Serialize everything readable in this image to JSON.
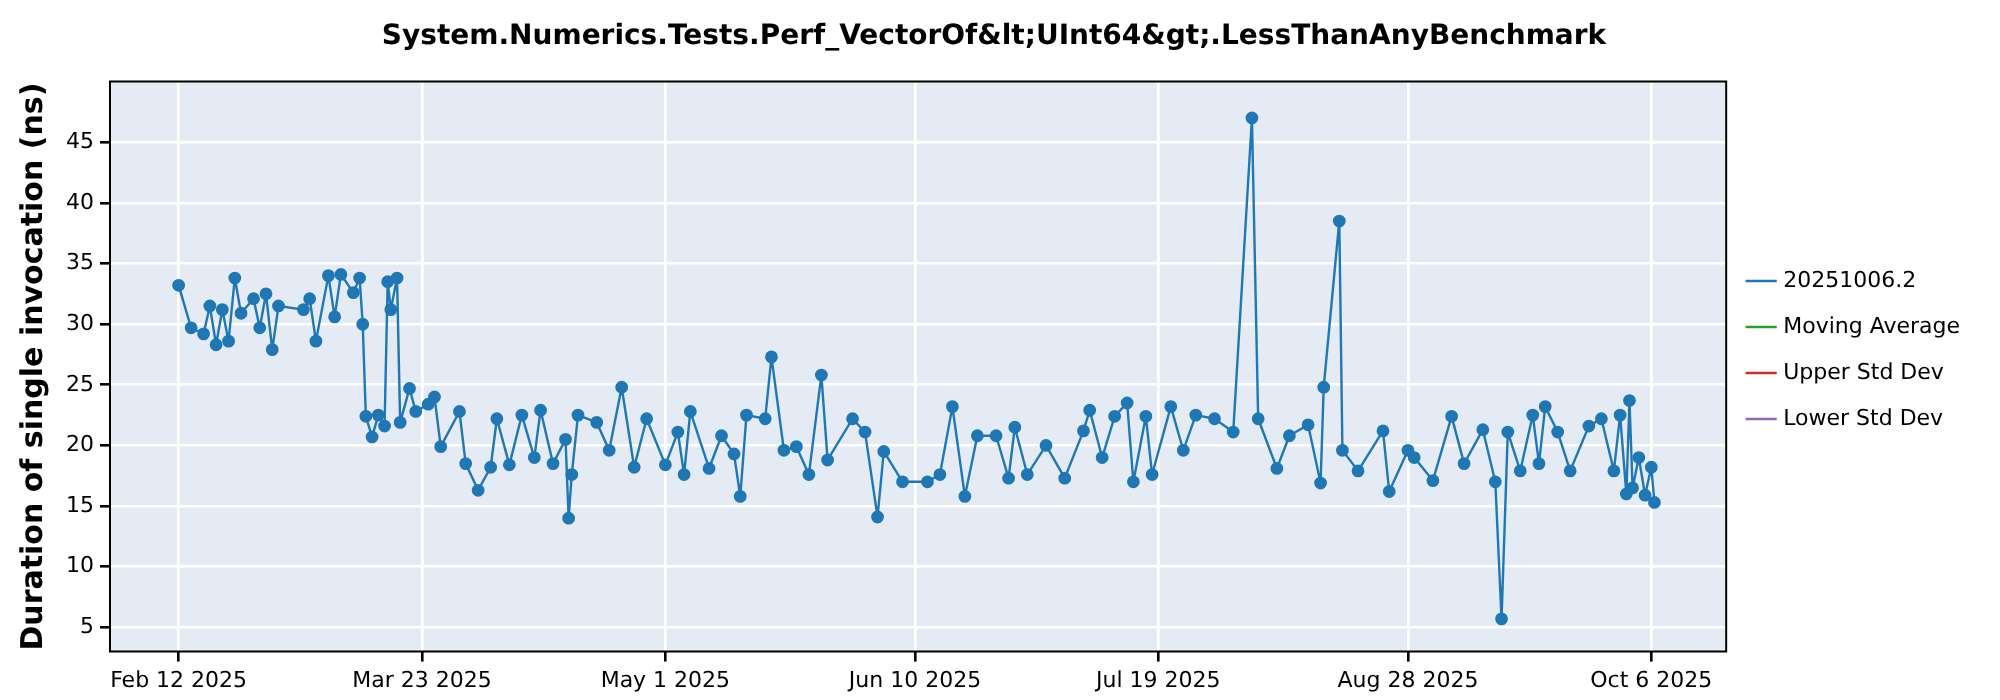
{
  "chart_data": {
    "type": "line",
    "title": "System.Numerics.Tests.Perf_VectorOf&lt;UInt64&gt;.LessThanAnyBenchmark",
    "ylabel": "Duration of single invocation (ns)",
    "xlim": [
      "2025-02-01",
      "2025-10-18"
    ],
    "xticks": [
      {
        "value": "2025-02-12",
        "label": "Feb 12 2025"
      },
      {
        "value": "2025-03-23",
        "label": "Mar 23 2025"
      },
      {
        "value": "2025-05-01",
        "label": "May 1 2025"
      },
      {
        "value": "2025-06-10",
        "label": "Jun 10 2025"
      },
      {
        "value": "2025-07-19",
        "label": "Jul 19 2025"
      },
      {
        "value": "2025-08-28",
        "label": "Aug 28 2025"
      },
      {
        "value": "2025-10-06",
        "label": "Oct 6 2025"
      }
    ],
    "ylim": [
      3,
      50
    ],
    "yticks": [
      5,
      10,
      15,
      20,
      25,
      30,
      35,
      40,
      45
    ],
    "grid": true,
    "legend": "right",
    "marker": "circle",
    "line_style": "solid",
    "series": [
      {
        "name": "20251006.2",
        "color": "#1f77b4",
        "x": [
          "2025-02-12",
          "2025-02-14",
          "2025-02-16",
          "2025-02-17",
          "2025-02-18",
          "2025-02-19",
          "2025-02-20",
          "2025-02-21",
          "2025-02-22",
          "2025-02-24",
          "2025-02-25",
          "2025-02-26",
          "2025-02-27",
          "2025-02-28",
          "2025-03-04",
          "2025-03-05",
          "2025-03-06",
          "2025-03-08",
          "2025-03-09",
          "2025-03-10",
          "2025-03-12",
          "2025-03-13",
          "2025-03-13T12:00",
          "2025-03-14",
          "2025-03-15",
          "2025-03-16",
          "2025-03-17",
          "2025-03-17T12:00",
          "2025-03-18",
          "2025-03-19",
          "2025-03-19T12:00",
          "2025-03-21",
          "2025-03-22",
          "2025-03-24",
          "2025-03-25",
          "2025-03-26",
          "2025-03-29",
          "2025-03-30",
          "2025-04-01",
          "2025-04-03",
          "2025-04-04",
          "2025-04-06",
          "2025-04-08",
          "2025-04-10",
          "2025-04-11",
          "2025-04-13",
          "2025-04-15",
          "2025-04-15T12:00",
          "2025-04-16",
          "2025-04-17",
          "2025-04-20",
          "2025-04-22",
          "2025-04-24",
          "2025-04-26",
          "2025-04-28",
          "2025-05-01",
          "2025-05-03",
          "2025-05-04",
          "2025-05-05",
          "2025-05-08",
          "2025-05-10",
          "2025-05-12",
          "2025-05-13",
          "2025-05-14",
          "2025-05-17",
          "2025-05-18",
          "2025-05-20",
          "2025-05-22",
          "2025-05-24",
          "2025-05-26",
          "2025-05-27",
          "2025-05-31",
          "2025-06-02",
          "2025-06-04",
          "2025-06-05",
          "2025-06-08",
          "2025-06-12",
          "2025-06-14",
          "2025-06-16",
          "2025-06-18",
          "2025-06-20",
          "2025-06-23",
          "2025-06-25",
          "2025-06-26",
          "2025-06-28",
          "2025-07-01",
          "2025-07-04",
          "2025-07-07",
          "2025-07-08",
          "2025-07-10",
          "2025-07-12",
          "2025-07-14",
          "2025-07-15",
          "2025-07-17",
          "2025-07-18",
          "2025-07-21",
          "2025-07-23",
          "2025-07-25",
          "2025-07-28",
          "2025-07-31",
          "2025-08-03",
          "2025-08-04",
          "2025-08-07",
          "2025-08-09",
          "2025-08-12",
          "2025-08-14",
          "2025-08-14T12:00",
          "2025-08-17",
          "2025-08-17T12:00",
          "2025-08-20",
          "2025-08-24",
          "2025-08-25",
          "2025-08-28",
          "2025-08-29",
          "2025-09-01",
          "2025-09-04",
          "2025-09-06",
          "2025-09-09",
          "2025-09-11",
          "2025-09-12",
          "2025-09-13",
          "2025-09-15",
          "2025-09-17",
          "2025-09-18",
          "2025-09-19",
          "2025-09-21",
          "2025-09-23",
          "2025-09-26",
          "2025-09-28",
          "2025-09-30",
          "2025-10-01",
          "2025-10-02",
          "2025-10-02T12:00",
          "2025-10-03",
          "2025-10-04",
          "2025-10-05",
          "2025-10-06",
          "2025-10-06T12:00"
        ],
        "values": [
          33.2,
          29.7,
          29.2,
          31.5,
          28.3,
          31.2,
          28.6,
          33.8,
          30.9,
          32.1,
          29.7,
          32.5,
          27.9,
          31.5,
          31.2,
          32.1,
          28.6,
          34,
          30.6,
          34.1,
          32.6,
          33.8,
          30,
          22.4,
          20.7,
          22.5,
          21.6,
          33.5,
          31.2,
          33.8,
          21.9,
          24.7,
          22.8,
          23.4,
          24,
          19.9,
          22.8,
          18.5,
          16.3,
          18.2,
          22.2,
          18.4,
          22.5,
          19,
          22.9,
          18.5,
          20.5,
          14,
          17.6,
          22.5,
          21.9,
          19.6,
          24.8,
          18.2,
          22.2,
          18.4,
          21.1,
          17.6,
          22.8,
          18.1,
          20.8,
          19.3,
          15.8,
          22.5,
          22.2,
          27.3,
          19.6,
          19.9,
          17.6,
          25.8,
          18.8,
          22.2,
          21.1,
          14.1,
          19.5,
          17,
          17,
          17.6,
          23.2,
          15.8,
          20.8,
          20.8,
          17.3,
          21.5,
          17.6,
          20,
          17.3,
          21.2,
          22.9,
          19,
          22.4,
          23.5,
          17,
          22.4,
          17.6,
          23.2,
          19.6,
          22.5,
          22.2,
          21.1,
          47,
          22.2,
          18.1,
          20.8,
          21.7,
          16.9,
          24.8,
          38.5,
          19.6,
          17.9,
          21.2,
          16.2,
          19.6,
          19,
          17.1,
          22.4,
          18.5,
          21.3,
          17,
          5.7,
          21.1,
          17.9,
          22.5,
          18.5,
          23.2,
          21.1,
          17.9,
          21.6,
          22.2,
          17.9,
          22.5,
          16,
          23.7,
          16.5,
          19,
          15.9,
          18.2,
          15.3
        ]
      },
      {
        "name": "Moving Average",
        "color": "#2ca02c"
      },
      {
        "name": "Upper Std Dev",
        "color": "#d62728"
      },
      {
        "name": "Lower Std Dev",
        "color": "#9467bd"
      }
    ]
  }
}
